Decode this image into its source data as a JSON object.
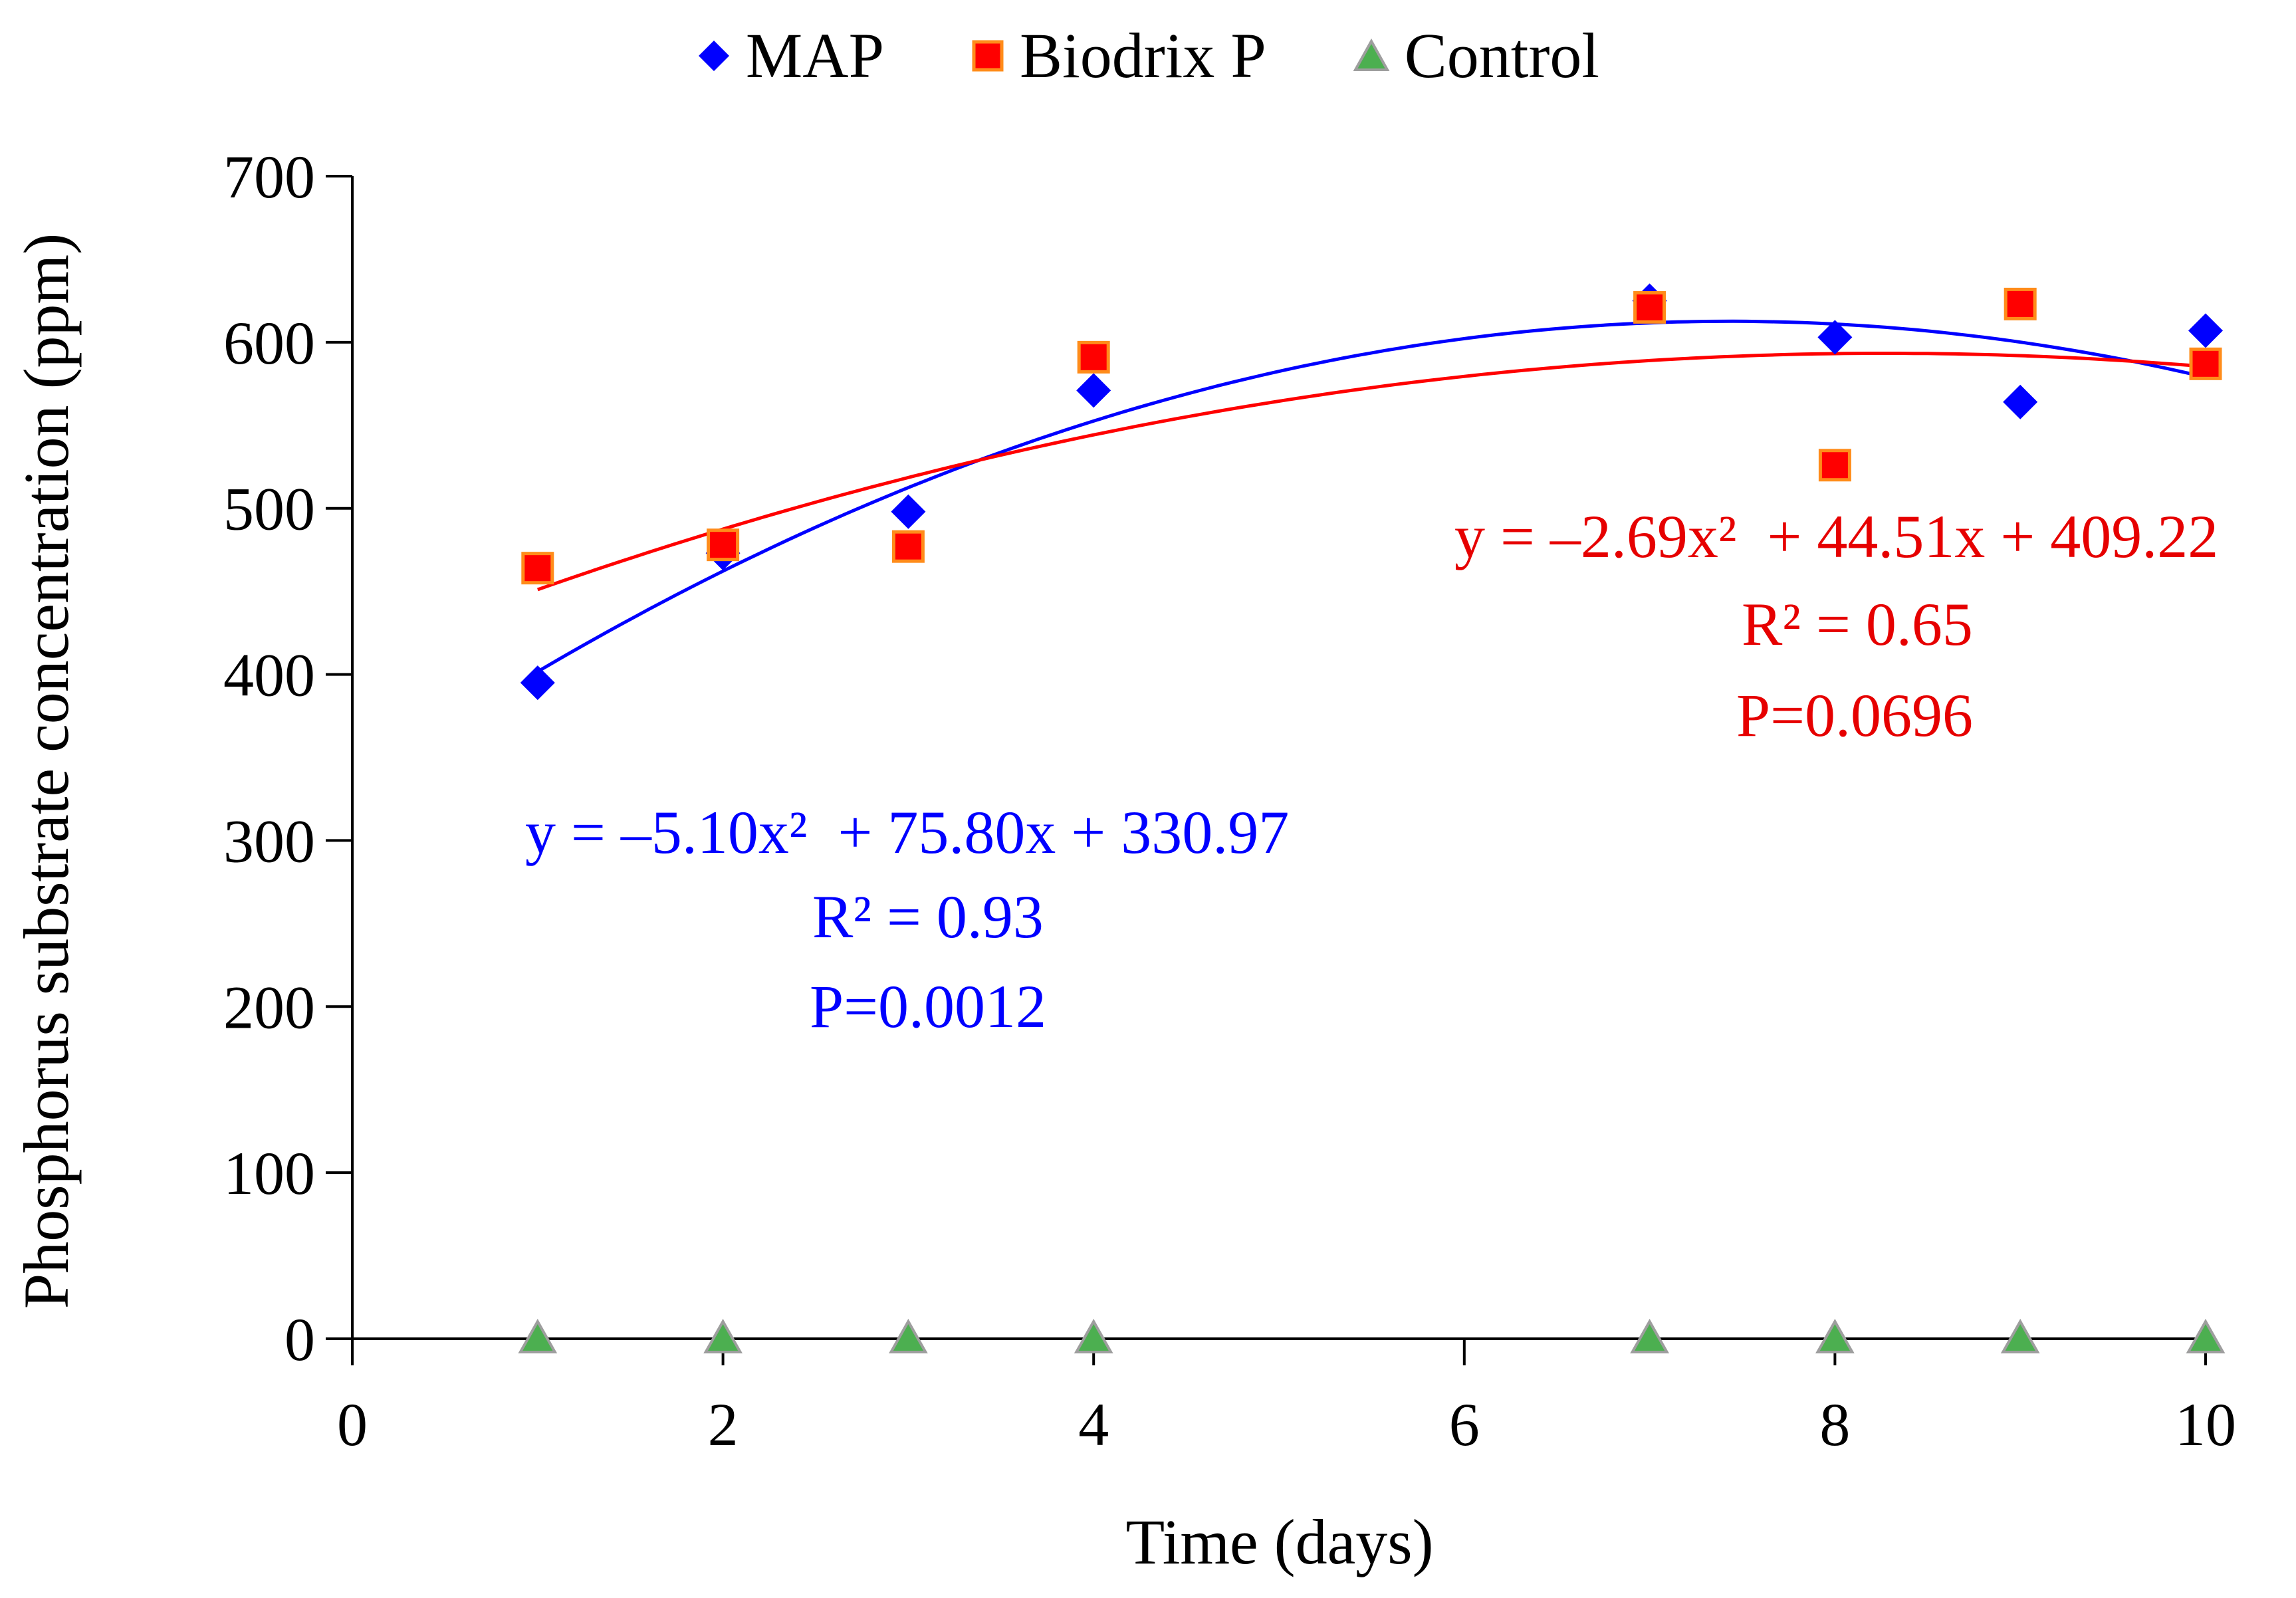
{
  "chart_data": {
    "type": "scatter",
    "title": "",
    "xlabel": "Time (days)",
    "ylabel": "Phosphorus substrate concentration (ppm)",
    "xlim": [
      0,
      10
    ],
    "ylim": [
      0,
      700
    ],
    "xticks": [
      0,
      2,
      4,
      6,
      8,
      10
    ],
    "yticks": [
      0,
      100,
      200,
      300,
      400,
      500,
      600,
      700
    ],
    "grid": false,
    "legend_position": "top",
    "series": [
      {
        "name": "MAP",
        "marker": "diamond",
        "color": "#0000ff",
        "x": [
          1,
          2,
          3,
          4,
          7,
          8,
          9,
          10
        ],
        "y": [
          395,
          473,
          498,
          571,
          625,
          603,
          564,
          607
        ],
        "trend": {
          "a": -5.1,
          "b": 75.8,
          "c": 330.97
        },
        "equation": "y = –5.10x²  + 75.80x + 330.97",
        "r2": "R² = 0.93",
        "p": "P=0.0012"
      },
      {
        "name": "Biodrix P",
        "marker": "square",
        "color": "#ff0000",
        "edge": "#ff8c1a",
        "x": [
          1,
          2,
          3,
          4,
          7,
          8,
          9,
          10
        ],
        "y": [
          464,
          478,
          477,
          591,
          621,
          526,
          623,
          587
        ],
        "trend": {
          "a": -2.69,
          "b": 44.51,
          "c": 409.22
        },
        "equation": "y = –2.69x²  + 44.51x + 409.22",
        "r2": "R² = 0.65",
        "p": "P=0.0696"
      },
      {
        "name": "Control",
        "marker": "triangle",
        "color": "#4caf50",
        "edge": "#9e9e9e",
        "x": [
          1,
          2,
          3,
          4,
          7,
          8,
          9,
          10
        ],
        "y": [
          0,
          0,
          0,
          0,
          0,
          0,
          0,
          0
        ]
      }
    ]
  }
}
